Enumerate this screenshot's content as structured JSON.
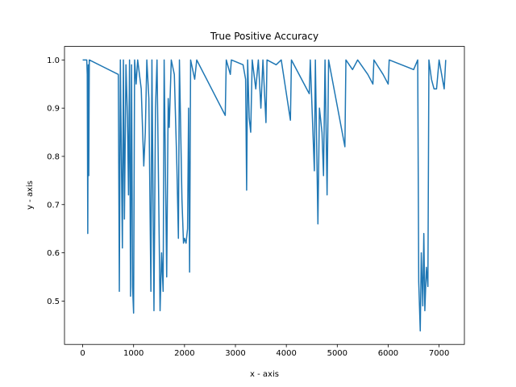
{
  "chart_data": {
    "type": "line",
    "title": "True Positive Accuracy",
    "x_label": "x - axis",
    "y_label": "y - axis",
    "xlim": [
      -357,
      7497
    ],
    "ylim": [
      0.41,
      1.028
    ],
    "xticks": [
      0,
      1000,
      2000,
      3000,
      4000,
      5000,
      6000,
      7000
    ],
    "yticks": [
      0.5,
      0.6,
      0.7,
      0.8,
      0.9,
      {
        "value": 1.0,
        "label": "1.0"
      }
    ],
    "series": [
      {
        "color": "#1f77b4",
        "x": [
          0,
          80,
          90,
          100,
          110,
          120,
          130,
          700,
          720,
          740,
          760,
          780,
          800,
          820,
          850,
          880,
          900,
          920,
          940,
          960,
          980,
          1000,
          1020,
          1050,
          1080,
          1150,
          1200,
          1230,
          1260,
          1300,
          1340,
          1360,
          1400,
          1430,
          1460,
          1520,
          1550,
          1580,
          1600,
          1650,
          1680,
          1700,
          1740,
          1800,
          1850,
          1880,
          1900,
          1950,
          1980,
          2000,
          2030,
          2060,
          2080,
          2100,
          2120,
          2200,
          2240,
          2800,
          2820,
          2900,
          2920,
          3150,
          3200,
          3220,
          3240,
          3270,
          3300,
          3330,
          3400,
          3450,
          3500,
          3540,
          3600,
          3620,
          3800,
          3900,
          4080,
          4100,
          4450,
          4470,
          4550,
          4570,
          4620,
          4650,
          4700,
          4730,
          4760,
          4800,
          4830,
          5150,
          5170,
          5300,
          5400,
          5600,
          5700,
          5720,
          5900,
          6000,
          6020,
          6500,
          6580,
          6600,
          6630,
          6650,
          6680,
          6700,
          6720,
          6750,
          6780,
          6800,
          6850,
          6900,
          6950,
          7000,
          7100,
          7130
        ],
        "values": [
          1.0,
          1.0,
          0.97,
          0.64,
          0.99,
          0.76,
          1.0,
          0.97,
          0.52,
          1.0,
          0.8,
          0.61,
          1.0,
          0.67,
          0.99,
          0.88,
          0.72,
          1.0,
          0.51,
          0.99,
          0.53,
          0.475,
          1.0,
          0.95,
          1.0,
          0.94,
          0.78,
          0.85,
          1.0,
          0.92,
          0.52,
          1.0,
          0.48,
          0.9,
          1.0,
          0.48,
          0.6,
          0.52,
          1.0,
          0.55,
          0.92,
          0.86,
          1.0,
          0.97,
          0.78,
          0.63,
          1.0,
          0.71,
          0.62,
          0.63,
          0.62,
          0.65,
          0.9,
          0.56,
          1.0,
          0.96,
          1.0,
          0.885,
          1.0,
          0.97,
          1.0,
          0.99,
          0.96,
          0.73,
          1.0,
          0.88,
          0.85,
          1.0,
          0.94,
          1.0,
          0.9,
          1.0,
          0.87,
          1.0,
          0.99,
          1.0,
          0.875,
          1.0,
          0.93,
          1.0,
          0.77,
          1.0,
          0.66,
          0.9,
          0.85,
          0.76,
          1.0,
          0.72,
          1.0,
          0.82,
          1.0,
          0.98,
          1.0,
          0.97,
          0.95,
          1.0,
          0.97,
          0.95,
          1.0,
          0.98,
          1.0,
          0.54,
          0.438,
          0.6,
          0.49,
          0.64,
          0.48,
          0.57,
          0.53,
          1.0,
          0.96,
          0.94,
          0.94,
          1.0,
          0.94,
          1.0
        ]
      }
    ]
  }
}
